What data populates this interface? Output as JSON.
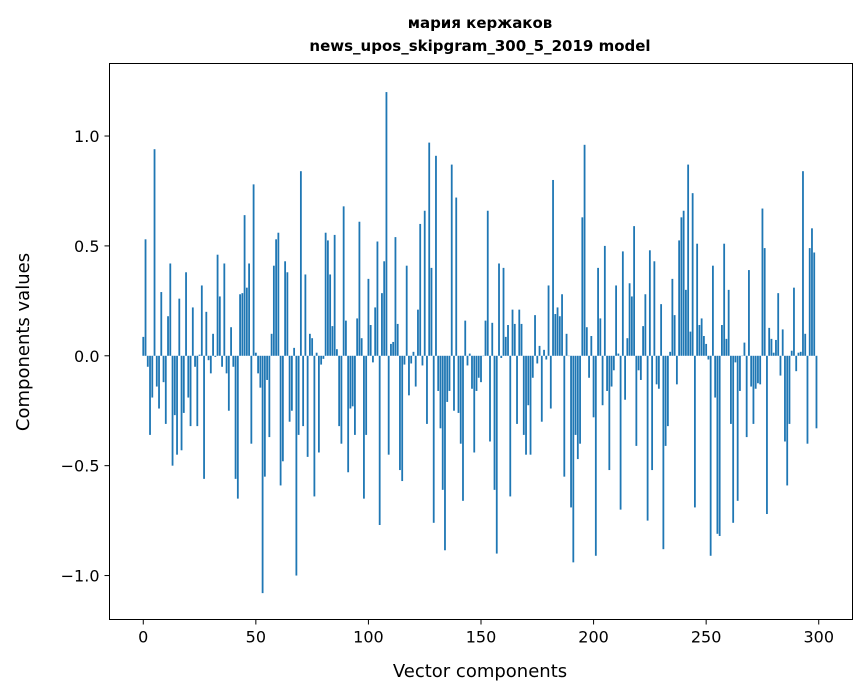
{
  "chart_data": {
    "type": "bar",
    "title": [
      "мария кержаков",
      "news_upos_skipgram_300_5_2019 model"
    ],
    "xlabel": "Vector components",
    "ylabel": "Components values",
    "xlim": [
      -15,
      315
    ],
    "ylim": [
      -1.2,
      1.33
    ],
    "xticks": [
      0,
      50,
      100,
      150,
      200,
      250,
      300
    ],
    "xtick_labels": [
      "0",
      "50",
      "100",
      "150",
      "200",
      "250",
      "300"
    ],
    "yticks": [
      -1.0,
      -0.5,
      0.0,
      0.5,
      1.0
    ],
    "ytick_labels": [
      "−1.0",
      "−0.5",
      "0.0",
      "0.5",
      "1.0"
    ],
    "grid": false,
    "bar_color": "#1f77b4",
    "values": [
      0.086,
      0.53,
      -0.05,
      -0.36,
      -0.19,
      0.94,
      -0.14,
      -0.24,
      0.29,
      -0.12,
      -0.31,
      0.18,
      0.42,
      -0.5,
      -0.27,
      -0.45,
      0.26,
      -0.43,
      -0.26,
      0.38,
      -0.19,
      -0.32,
      0.22,
      -0.05,
      -0.32,
      0.005,
      0.32,
      -0.56,
      0.2,
      -0.02,
      -0.08,
      0.1,
      -0.005,
      0.46,
      0.27,
      -0.05,
      0.42,
      -0.08,
      -0.25,
      0.13,
      -0.05,
      -0.56,
      -0.65,
      0.28,
      0.285,
      0.64,
      0.31,
      0.42,
      -0.4,
      0.78,
      0.014,
      -0.08,
      -0.145,
      -1.08,
      -0.55,
      -0.11,
      -0.37,
      0.1,
      0.41,
      0.53,
      0.56,
      -0.59,
      -0.48,
      0.43,
      0.38,
      -0.3,
      -0.25,
      0.036,
      -1.0,
      -0.36,
      0.84,
      -0.32,
      0.37,
      -0.46,
      0.1,
      0.08,
      -0.64,
      0.014,
      -0.44,
      -0.04,
      -0.014,
      0.56,
      0.525,
      0.37,
      0.135,
      0.55,
      0.03,
      -0.32,
      -0.4,
      0.68,
      0.16,
      -0.53,
      -0.24,
      -0.23,
      -0.36,
      0.17,
      0.61,
      0.08,
      -0.65,
      -0.36,
      0.35,
      0.14,
      -0.03,
      0.22,
      0.52,
      -0.77,
      0.285,
      0.43,
      1.2,
      -0.45,
      0.054,
      0.063,
      0.54,
      0.145,
      -0.52,
      -0.57,
      -0.04,
      0.41,
      -0.18,
      -0.035,
      0.018,
      -0.14,
      0.21,
      0.6,
      -0.044,
      0.66,
      -0.31,
      0.97,
      0.4,
      -0.76,
      0.91,
      -0.16,
      -0.33,
      -0.61,
      -0.885,
      -0.21,
      -0.16,
      0.87,
      -0.25,
      0.72,
      -0.26,
      -0.4,
      -0.66,
      0.16,
      -0.044,
      0.01,
      -0.15,
      -0.44,
      -0.16,
      -0.1,
      -0.12,
      0.0,
      0.16,
      0.66,
      -0.39,
      0.15,
      -0.61,
      -0.9,
      0.42,
      -0.01,
      0.4,
      0.086,
      0.14,
      -0.64,
      0.21,
      0.145,
      -0.31,
      0.21,
      0.145,
      -0.36,
      -0.45,
      -0.225,
      -0.45,
      -0.1,
      0.185,
      -0.035,
      0.045,
      -0.3,
      0.027,
      -0.017,
      0.32,
      -0.24,
      0.8,
      0.19,
      0.22,
      0.18,
      0.28,
      -0.55,
      0.1,
      0.0,
      -0.69,
      -0.94,
      -0.36,
      -0.47,
      -0.4,
      0.63,
      0.96,
      0.13,
      -0.1,
      0.09,
      -0.28,
      -0.91,
      0.4,
      0.17,
      -0.225,
      0.5,
      -0.16,
      -0.52,
      -0.14,
      -0.066,
      0.32,
      0.01,
      -0.7,
      0.475,
      -0.2,
      0.08,
      0.33,
      0.27,
      0.59,
      -0.41,
      -0.066,
      -0.11,
      0.135,
      0.28,
      -0.75,
      0.48,
      -0.52,
      0.43,
      -0.13,
      -0.15,
      0.235,
      -0.88,
      -0.41,
      -0.32,
      0.018,
      0.35,
      0.185,
      -0.13,
      0.525,
      0.63,
      0.66,
      0.3,
      0.87,
      0.11,
      0.74,
      -0.69,
      0.51,
      0.14,
      0.17,
      0.09,
      0.054,
      -0.017,
      -0.91,
      0.41,
      -0.19,
      -0.81,
      -0.82,
      0.14,
      0.51,
      0.077,
      0.3,
      -0.31,
      -0.76,
      -0.03,
      -0.66,
      -0.16,
      0.0,
      0.06,
      -0.37,
      0.39,
      -0.14,
      -0.31,
      -0.15,
      -0.125,
      -0.13,
      0.67,
      0.49,
      -0.72,
      0.127,
      0.077,
      0.014,
      0.072,
      0.285,
      -0.09,
      0.12,
      -0.39,
      -0.59,
      -0.31,
      0.023,
      0.31,
      -0.07,
      0.014,
      0.018,
      0.84,
      0.1,
      -0.4,
      0.49,
      0.58,
      0.47,
      -0.33
    ]
  }
}
